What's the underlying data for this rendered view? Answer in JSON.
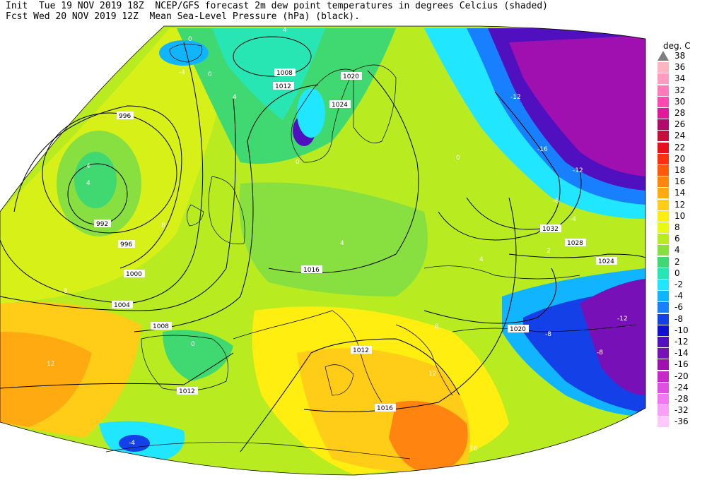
{
  "header": {
    "line1": "Init  Tue 19 NOV 2019 18Z  NCEP/GFS forecast 2m dew point temperatures in degrees Celcius (shaded)",
    "line2": "Fcst Wed 20 NOV 2019 12Z  Mean Sea-Level Pressure (hPa) (black)."
  },
  "legend": {
    "title": "deg. C",
    "levels": [
      {
        "label": "38",
        "color": "#ffffff"
      },
      {
        "label": "36",
        "color": "#ffb4c0"
      },
      {
        "label": "34",
        "color": "#ff9cc0"
      },
      {
        "label": "32",
        "color": "#ff7ab8"
      },
      {
        "label": "30",
        "color": "#ff48b0"
      },
      {
        "label": "28",
        "color": "#e4169c"
      },
      {
        "label": "26",
        "color": "#b4086c"
      },
      {
        "label": "24",
        "color": "#c80c3c"
      },
      {
        "label": "22",
        "color": "#e8101c"
      },
      {
        "label": "20",
        "color": "#ff3010"
      },
      {
        "label": "18",
        "color": "#ff5a0a"
      },
      {
        "label": "16",
        "color": "#ff8410"
      },
      {
        "label": "14",
        "color": "#ffaa10"
      },
      {
        "label": "12",
        "color": "#ffcc18"
      },
      {
        "label": "10",
        "color": "#ffee10"
      },
      {
        "label": "8",
        "color": "#e8fa10"
      },
      {
        "label": "6",
        "color": "#b8ec20"
      },
      {
        "label": "4",
        "color": "#88e040"
      },
      {
        "label": "2",
        "color": "#40d870"
      },
      {
        "label": "0",
        "color": "#28e6b4"
      },
      {
        "label": "-2",
        "color": "#20e6ff"
      },
      {
        "label": "-4",
        "color": "#10b4ff"
      },
      {
        "label": "-6",
        "color": "#1880ff"
      },
      {
        "label": "-8",
        "color": "#1440e8"
      },
      {
        "label": "-10",
        "color": "#1010d0"
      },
      {
        "label": "-12",
        "color": "#5010c0"
      },
      {
        "label": "-14",
        "color": "#7810b8"
      },
      {
        "label": "-16",
        "color": "#a010b0"
      },
      {
        "label": "-20",
        "color": "#c828c8"
      },
      {
        "label": "-24",
        "color": "#e050e0"
      },
      {
        "label": "-28",
        "color": "#f078f0"
      },
      {
        "label": "-32",
        "color": "#f8a0f8"
      },
      {
        "label": "-36",
        "color": "#ffc8ff"
      }
    ]
  },
  "isobars": [
    {
      "label": "996"
    },
    {
      "label": "992"
    },
    {
      "label": "996"
    },
    {
      "label": "1000"
    },
    {
      "label": "1004"
    },
    {
      "label": "1008"
    },
    {
      "label": "1008"
    },
    {
      "label": "1012"
    },
    {
      "label": "1012"
    },
    {
      "label": "1012"
    },
    {
      "label": "1016"
    },
    {
      "label": "1016"
    },
    {
      "label": "1020"
    },
    {
      "label": "1020"
    },
    {
      "label": "1024"
    },
    {
      "label": "1024"
    },
    {
      "label": "1028"
    },
    {
      "label": "1032"
    }
  ],
  "dewpoint_labels": [
    {
      "label": "0"
    },
    {
      "label": "4"
    },
    {
      "label": "-4"
    },
    {
      "label": "0"
    },
    {
      "label": "4"
    },
    {
      "label": "4"
    },
    {
      "label": "4"
    },
    {
      "label": "4"
    },
    {
      "label": "8"
    },
    {
      "label": "8"
    },
    {
      "label": "8"
    },
    {
      "label": "12"
    },
    {
      "label": "12"
    },
    {
      "label": "16"
    },
    {
      "label": "-12"
    },
    {
      "label": "-16"
    },
    {
      "label": "-12"
    },
    {
      "label": "-8"
    },
    {
      "label": "-4"
    },
    {
      "label": "-8"
    },
    {
      "label": "-12"
    },
    {
      "label": "-8"
    },
    {
      "label": "0"
    },
    {
      "label": "0"
    },
    {
      "label": "-4"
    },
    {
      "label": "2"
    },
    {
      "label": "0"
    },
    {
      "label": "4"
    }
  ]
}
